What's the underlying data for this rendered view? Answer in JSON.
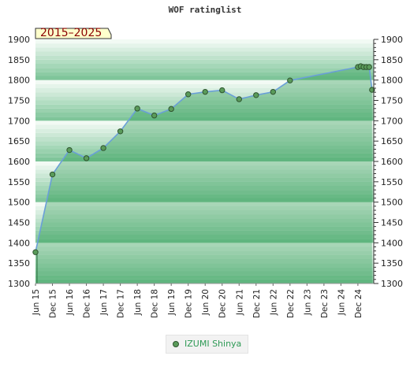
{
  "chart_data": {
    "type": "area",
    "title": "WOF ratinglist",
    "badge": "2015–2025",
    "ylim": [
      1300,
      1900
    ],
    "yticks": [
      1300,
      1350,
      1400,
      1450,
      1500,
      1550,
      1600,
      1650,
      1700,
      1750,
      1800,
      1850,
      1900
    ],
    "xticks": [
      {
        "label": "Jun 15",
        "t": 0
      },
      {
        "label": "Dec 15",
        "t": 6
      },
      {
        "label": "Jun 16",
        "t": 12
      },
      {
        "label": "Dec 16",
        "t": 18
      },
      {
        "label": "Jun 17",
        "t": 24
      },
      {
        "label": "Dec 17",
        "t": 30
      },
      {
        "label": "Jun 18",
        "t": 36
      },
      {
        "label": "Dec 18",
        "t": 42
      },
      {
        "label": "Jun 19",
        "t": 48
      },
      {
        "label": "Dec 19",
        "t": 54
      },
      {
        "label": "Jun 20",
        "t": 60
      },
      {
        "label": "Dec 20",
        "t": 66
      },
      {
        "label": "Jun 21",
        "t": 72
      },
      {
        "label": "Dec 21",
        "t": 78
      },
      {
        "label": "Jun 22",
        "t": 84
      },
      {
        "label": "Dec 22",
        "t": 90
      },
      {
        "label": "Jun 23",
        "t": 96
      },
      {
        "label": "Dec 23",
        "t": 102
      },
      {
        "label": "Jun 24",
        "t": 108
      },
      {
        "label": "Dec 24",
        "t": 114
      }
    ],
    "series": [
      {
        "name": "IZUMI Shinya",
        "points": [
          {
            "t": 0,
            "y": 1377
          },
          {
            "t": 6,
            "y": 1568
          },
          {
            "t": 12,
            "y": 1628
          },
          {
            "t": 18,
            "y": 1608
          },
          {
            "t": 24,
            "y": 1633
          },
          {
            "t": 30,
            "y": 1674
          },
          {
            "t": 36,
            "y": 1730
          },
          {
            "t": 42,
            "y": 1713
          },
          {
            "t": 48,
            "y": 1729
          },
          {
            "t": 54,
            "y": 1765
          },
          {
            "t": 60,
            "y": 1771
          },
          {
            "t": 66,
            "y": 1775
          },
          {
            "t": 72,
            "y": 1753
          },
          {
            "t": 78,
            "y": 1763
          },
          {
            "t": 84,
            "y": 1771
          },
          {
            "t": 90,
            "y": 1799
          },
          {
            "t": 114,
            "y": 1832
          },
          {
            "t": 115,
            "y": 1834
          },
          {
            "t": 116,
            "y": 1832
          },
          {
            "t": 117,
            "y": 1832
          },
          {
            "t": 118,
            "y": 1832
          },
          {
            "t": 119,
            "y": 1776
          }
        ]
      }
    ],
    "colors": {
      "line": "#6a9fd8",
      "marker": "#5a9b5a",
      "marker_edge": "#2f552f",
      "band_dark": "#7fc59a",
      "band_light": "#f2faf4",
      "badge_fill": "#ffffcc",
      "badge_text": "#8b0000",
      "legend_text": "#2e9a55"
    }
  }
}
